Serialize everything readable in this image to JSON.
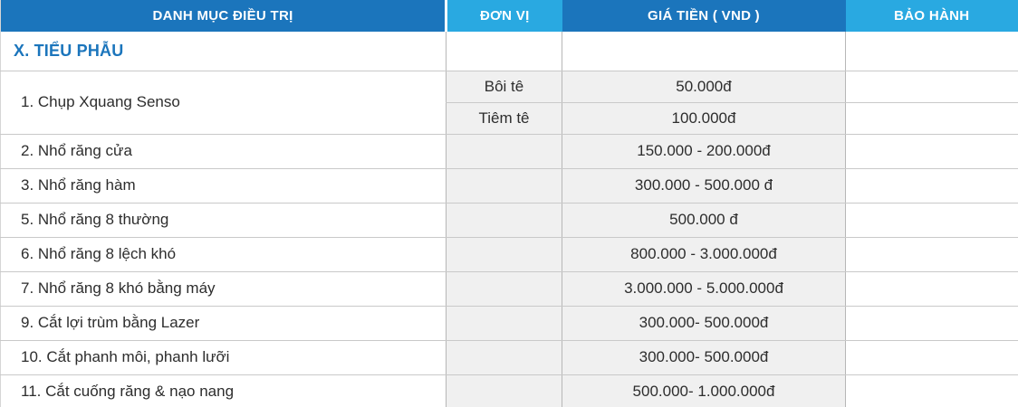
{
  "table": {
    "headers": {
      "category": "DANH MỤC ĐIỀU TRỊ",
      "unit": "ĐƠN VỊ",
      "price": "GIÁ TIỀN ( VND )",
      "warranty": "BẢO HÀNH"
    },
    "section_title": "X. TIỂU PHẪU",
    "rows": [
      {
        "name": "1. Chụp Xquang Senso",
        "variants": [
          {
            "unit": "Bôi tê",
            "price": "50.000đ",
            "warranty": ""
          },
          {
            "unit": "Tiêm tê",
            "price": "100.000đ",
            "warranty": ""
          }
        ]
      },
      {
        "name": "2. Nhổ răng cửa",
        "unit": "",
        "price": "150.000 - 200.000đ",
        "warranty": ""
      },
      {
        "name": "3. Nhổ răng hàm",
        "unit": "",
        "price": "300.000 - 500.000 đ",
        "warranty": ""
      },
      {
        "name": "5. Nhổ răng 8 thường",
        "unit": "",
        "price": "500.000 đ",
        "warranty": ""
      },
      {
        "name": "6. Nhổ răng 8 lệch khó",
        "unit": "",
        "price": "800.000 - 3.000.000đ",
        "warranty": ""
      },
      {
        "name": "7. Nhổ răng 8 khó bằng máy",
        "unit": "",
        "price": "3.000.000 - 5.000.000đ",
        "warranty": ""
      },
      {
        "name": "9. Cắt lợi trùm bằng Lazer",
        "unit": "",
        "price": "300.000- 500.000đ",
        "warranty": ""
      },
      {
        "name": "10. Cắt phanh môi, phanh lưỡi",
        "unit": "",
        "price": "300.000- 500.000đ",
        "warranty": ""
      },
      {
        "name": "11. Cắt cuống răng & nạo nang",
        "unit": "",
        "price": "500.000- 1.000.000đ",
        "warranty": ""
      }
    ]
  },
  "colors": {
    "header_dark_blue": "#1B75BC",
    "header_light_blue": "#29A9E1",
    "section_title_blue": "#1B75BC",
    "row_cell_gray": "#F0F0F0",
    "body_text": "#2D2D2D",
    "header_text": "#FFFFFF"
  }
}
